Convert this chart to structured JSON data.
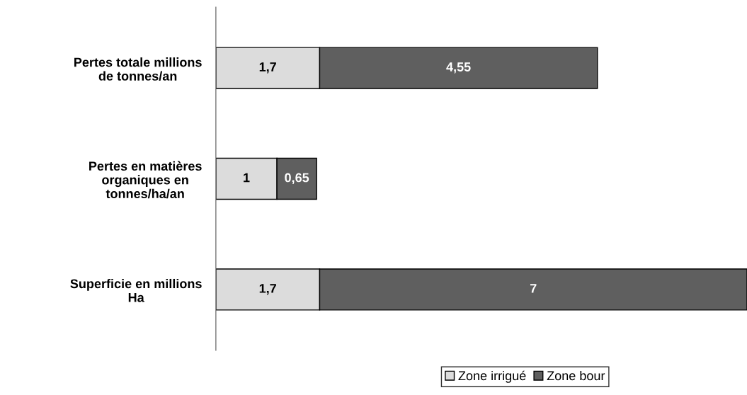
{
  "chart_data": {
    "type": "bar",
    "orientation": "horizontal",
    "stacked": true,
    "categories": [
      "Pertes totale millions de tonnes/an",
      "Pertes en matières organiques en tonnes/ha/an",
      "Superficie en millions Ha"
    ],
    "series": [
      {
        "name": "Zone irrigué",
        "color": "#dcdcdc",
        "values": [
          1.7,
          1,
          1.7
        ],
        "value_labels": [
          "1,7",
          "1",
          "1,7"
        ]
      },
      {
        "name": "Zone bour",
        "color": "#5f5f5f",
        "values": [
          4.55,
          0.65,
          7
        ],
        "value_labels": [
          "4,55",
          "0,65",
          "7"
        ]
      }
    ],
    "legend": "bottom",
    "grid": false
  }
}
